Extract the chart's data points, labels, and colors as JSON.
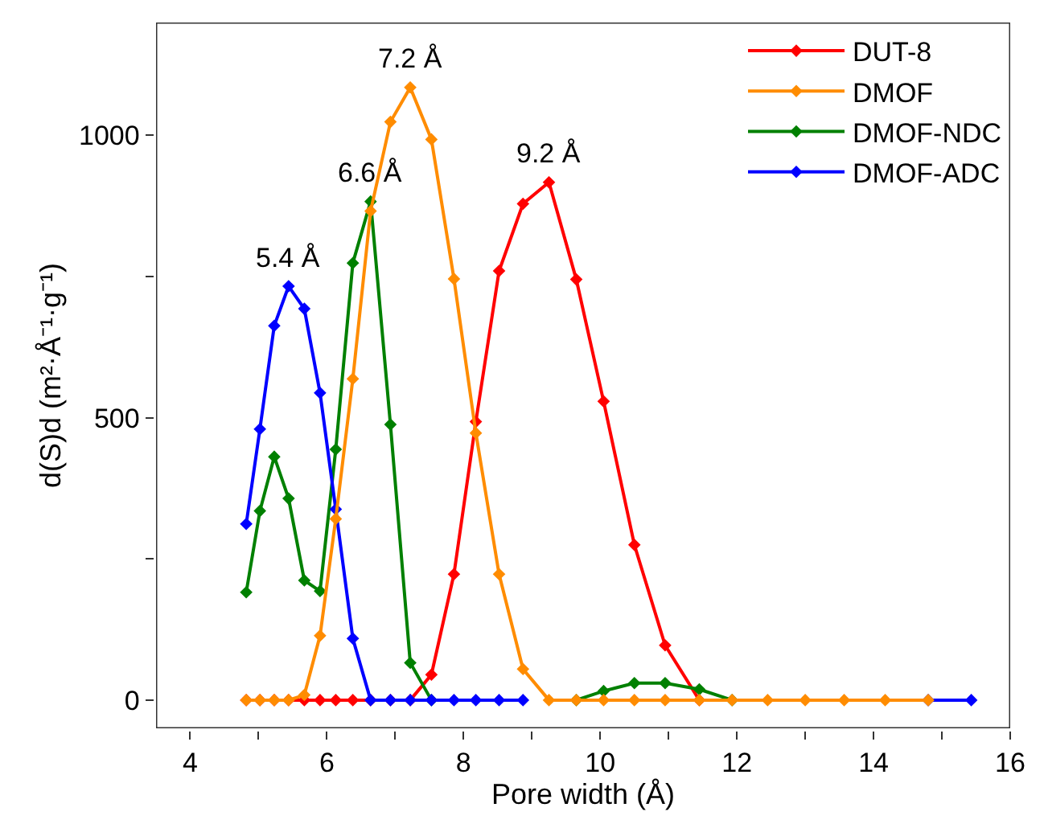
{
  "chart_data": {
    "type": "line",
    "xlabel": "Pore width (Å)",
    "ylabel": "d(S)d (m²·Å⁻¹·g⁻¹)",
    "xlim": [
      3.5,
      16
    ],
    "ylim": [
      -50,
      1200
    ],
    "xticks": [
      4,
      {
        "value": 5,
        "label": null
      },
      6,
      {
        "value": 7,
        "label": null
      },
      8,
      {
        "value": 9,
        "label": null
      },
      10,
      {
        "value": 11,
        "label": null
      },
      12,
      {
        "value": 13,
        "label": null
      },
      14,
      {
        "value": 15,
        "label": null
      },
      16
    ],
    "yticks": [
      0,
      {
        "value": 250,
        "label": null
      },
      500,
      {
        "value": 750,
        "label": null
      },
      1000
    ],
    "legend": "top right",
    "marker": "diamond",
    "line_style": "solid",
    "series": [
      {
        "name": "DUT-8",
        "color": "#ff0000",
        "x": [
          4.82,
          5.02,
          5.23,
          5.44,
          5.67,
          5.9,
          6.13,
          6.38,
          6.64,
          6.93,
          7.22,
          7.53,
          7.86,
          8.18,
          8.52,
          8.87,
          9.25,
          9.65,
          10.05,
          10.5,
          10.95,
          11.45
        ],
        "values": [
          0,
          0,
          0,
          0,
          0,
          0,
          0,
          0,
          0,
          0,
          0,
          45,
          223,
          493,
          760,
          879,
          917,
          745,
          529,
          275,
          97,
          0
        ]
      },
      {
        "name": "DMOF",
        "color": "#ff8c00",
        "x": [
          4.82,
          5.02,
          5.23,
          5.44,
          5.67,
          5.9,
          6.13,
          6.38,
          6.64,
          6.93,
          7.22,
          7.53,
          7.86,
          8.18,
          8.52,
          8.87,
          9.25,
          9.65,
          10.05,
          10.5,
          10.95,
          11.45,
          11.93,
          12.45,
          13.0,
          13.57,
          14.17,
          14.8
        ],
        "values": [
          0,
          0,
          0,
          0,
          9,
          114,
          321,
          569,
          866,
          1024,
          1085,
          993,
          746,
          473,
          223,
          55,
          0,
          0,
          0,
          0,
          0,
          0,
          0,
          0,
          0,
          0,
          0,
          0
        ]
      },
      {
        "name": "DMOF-NDC",
        "color": "#008000",
        "x": [
          4.82,
          5.02,
          5.23,
          5.44,
          5.67,
          5.9,
          6.13,
          6.38,
          6.64,
          6.93,
          7.22,
          7.53,
          7.86,
          8.18,
          8.52,
          8.87,
          9.25,
          9.65,
          10.05,
          10.5,
          10.95,
          11.45,
          11.93
        ],
        "values": [
          191,
          335,
          431,
          357,
          212,
          193,
          444,
          774,
          883,
          488,
          66,
          0,
          null,
          null,
          null,
          null,
          null,
          0,
          16,
          30,
          30,
          19,
          0
        ]
      },
      {
        "name": "DMOF-ADC",
        "color": "#0000ff",
        "x": [
          4.82,
          5.02,
          5.23,
          5.44,
          5.67,
          5.9,
          6.13,
          6.38,
          6.64,
          6.93,
          7.22,
          7.53,
          7.86,
          8.18,
          8.52,
          8.87,
          9.25,
          9.65,
          10.05,
          10.5,
          10.95,
          11.45,
          11.93,
          12.45,
          13.0,
          13.57,
          14.17,
          14.8,
          15.43
        ],
        "values": [
          312,
          480,
          663,
          733,
          693,
          544,
          338,
          109,
          0,
          0,
          0,
          0,
          0,
          0,
          0,
          0,
          null,
          null,
          null,
          null,
          null,
          null,
          null,
          null,
          null,
          null,
          null,
          0,
          0
        ]
      }
    ],
    "annotations": [
      {
        "text": "5.4 Å",
        "x": 5.44,
        "y": 733
      },
      {
        "text": "6.6 Å",
        "x": 6.64,
        "y": 883
      },
      {
        "text": "7.2 Å",
        "x": 7.22,
        "y": 1085
      },
      {
        "text": "9.2 Å",
        "x": 9.25,
        "y": 917
      }
    ]
  }
}
